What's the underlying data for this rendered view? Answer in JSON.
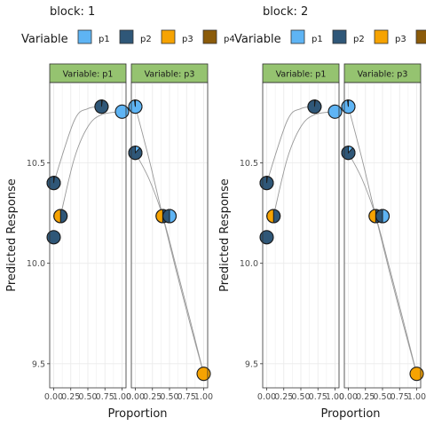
{
  "chart_data": {
    "type": "scatter",
    "variables": [
      "p1",
      "p2",
      "p3",
      "p4"
    ],
    "legend_title": "Variable",
    "legend_position": "top",
    "colors": {
      "p1": "#5eb4f4",
      "p2": "#2f5778",
      "p3": "#f6a302",
      "p4": "#8b5b0a"
    },
    "point_edge": "#1a1a1a",
    "curve_color": "#999999",
    "strip_color": "#95c370",
    "xlabel": "Proportion",
    "ylabel": "Predicted Response",
    "xticks": [
      "0.00",
      "0.25",
      "0.50",
      "0.75",
      "1.00"
    ],
    "ylim": [
      9.38,
      10.9
    ],
    "yticks": [
      {
        "value": 9.5,
        "label": "9.5"
      },
      {
        "value": 10.0,
        "label": "10.0"
      },
      {
        "value": 10.5,
        "label": "10.5"
      }
    ],
    "grid": true,
    "blocks": [
      {
        "title": "block: 1",
        "panels": [
          {
            "strip": "Variable: p1",
            "curves": [
              [
                [
                  0.0,
                  10.4
                ],
                [
                  0.3,
                  10.71
                ],
                [
                  0.5,
                  10.77
                ],
                [
                  0.7,
                  10.78
                ]
              ],
              [
                [
                  0.1,
                  10.235
                ],
                [
                  0.3,
                  10.52
                ],
                [
                  0.5,
                  10.68
                ],
                [
                  0.7,
                  10.74
                ],
                [
                  1.0,
                  10.755
                ]
              ]
            ],
            "points": [
              {
                "x": 0.0,
                "y": 10.4,
                "pie": [
                  0.02,
                  0.98,
                  0.0,
                  0.0
                ]
              },
              {
                "x": 0.0,
                "y": 10.13,
                "pie": [
                  0.0,
                  1.0,
                  0.0,
                  0.0
                ]
              },
              {
                "x": 0.1,
                "y": 10.235,
                "pie": [
                  0.0,
                  0.5,
                  0.5,
                  0.0
                ]
              },
              {
                "x": 0.7,
                "y": 10.78,
                "pie": [
                  0.02,
                  0.98,
                  0.0,
                  0.0
                ]
              },
              {
                "x": 1.0,
                "y": 10.755,
                "pie": [
                  1.0,
                  0.0,
                  0.0,
                  0.0
                ]
              }
            ]
          },
          {
            "strip": "Variable: p3",
            "curves": [
              [
                [
                  0.0,
                  10.55
                ],
                [
                  0.2,
                  10.42
                ],
                [
                  0.4,
                  10.235
                ],
                [
                  0.6,
                  9.98
                ],
                [
                  0.8,
                  9.72
                ],
                [
                  1.0,
                  9.45
                ]
              ],
              [
                [
                  0.0,
                  10.78
                ],
                [
                  0.2,
                  10.52
                ],
                [
                  0.4,
                  10.235
                ],
                [
                  0.6,
                  9.96
                ],
                [
                  0.8,
                  9.7
                ],
                [
                  1.0,
                  9.45
                ]
              ]
            ],
            "points": [
              {
                "x": 0.0,
                "y": 10.78,
                "pie": [
                  0.98,
                  0.02,
                  0.0,
                  0.0
                ]
              },
              {
                "x": 0.0,
                "y": 10.55,
                "pie": [
                  0.12,
                  0.88,
                  0.0,
                  0.0
                ]
              },
              {
                "x": 0.4,
                "y": 10.235,
                "pie": [
                  0.0,
                  0.5,
                  0.5,
                  0.0
                ]
              },
              {
                "x": 0.5,
                "y": 10.235,
                "pie": [
                  0.5,
                  0.5,
                  0.0,
                  0.0
                ]
              },
              {
                "x": 1.0,
                "y": 9.45,
                "pie": [
                  0.0,
                  0.0,
                  1.0,
                  0.0
                ]
              }
            ]
          }
        ]
      },
      {
        "title": "block: 2",
        "panels": [
          {
            "strip": "Variable: p1",
            "curves": [
              [
                [
                  0.0,
                  10.4
                ],
                [
                  0.3,
                  10.71
                ],
                [
                  0.5,
                  10.77
                ],
                [
                  0.7,
                  10.78
                ]
              ],
              [
                [
                  0.1,
                  10.235
                ],
                [
                  0.3,
                  10.52
                ],
                [
                  0.5,
                  10.68
                ],
                [
                  0.7,
                  10.74
                ],
                [
                  1.0,
                  10.755
                ]
              ]
            ],
            "points": [
              {
                "x": 0.0,
                "y": 10.4,
                "pie": [
                  0.02,
                  0.98,
                  0.0,
                  0.0
                ]
              },
              {
                "x": 0.0,
                "y": 10.13,
                "pie": [
                  0.0,
                  1.0,
                  0.0,
                  0.0
                ]
              },
              {
                "x": 0.1,
                "y": 10.235,
                "pie": [
                  0.0,
                  0.5,
                  0.5,
                  0.0
                ]
              },
              {
                "x": 0.7,
                "y": 10.78,
                "pie": [
                  0.02,
                  0.98,
                  0.0,
                  0.0
                ]
              },
              {
                "x": 1.0,
                "y": 10.755,
                "pie": [
                  1.0,
                  0.0,
                  0.0,
                  0.0
                ]
              }
            ]
          },
          {
            "strip": "Variable: p3",
            "curves": [
              [
                [
                  0.0,
                  10.55
                ],
                [
                  0.2,
                  10.42
                ],
                [
                  0.4,
                  10.235
                ],
                [
                  0.6,
                  9.98
                ],
                [
                  0.8,
                  9.72
                ],
                [
                  1.0,
                  9.45
                ]
              ],
              [
                [
                  0.0,
                  10.78
                ],
                [
                  0.2,
                  10.52
                ],
                [
                  0.4,
                  10.235
                ],
                [
                  0.6,
                  9.96
                ],
                [
                  0.8,
                  9.7
                ],
                [
                  1.0,
                  9.45
                ]
              ]
            ],
            "points": [
              {
                "x": 0.0,
                "y": 10.78,
                "pie": [
                  0.98,
                  0.02,
                  0.0,
                  0.0
                ]
              },
              {
                "x": 0.0,
                "y": 10.55,
                "pie": [
                  0.12,
                  0.88,
                  0.0,
                  0.0
                ]
              },
              {
                "x": 0.4,
                "y": 10.235,
                "pie": [
                  0.0,
                  0.5,
                  0.5,
                  0.0
                ]
              },
              {
                "x": 0.5,
                "y": 10.235,
                "pie": [
                  0.5,
                  0.5,
                  0.0,
                  0.0
                ]
              },
              {
                "x": 1.0,
                "y": 9.45,
                "pie": [
                  0.0,
                  0.0,
                  1.0,
                  0.0
                ]
              }
            ]
          }
        ]
      }
    ]
  }
}
